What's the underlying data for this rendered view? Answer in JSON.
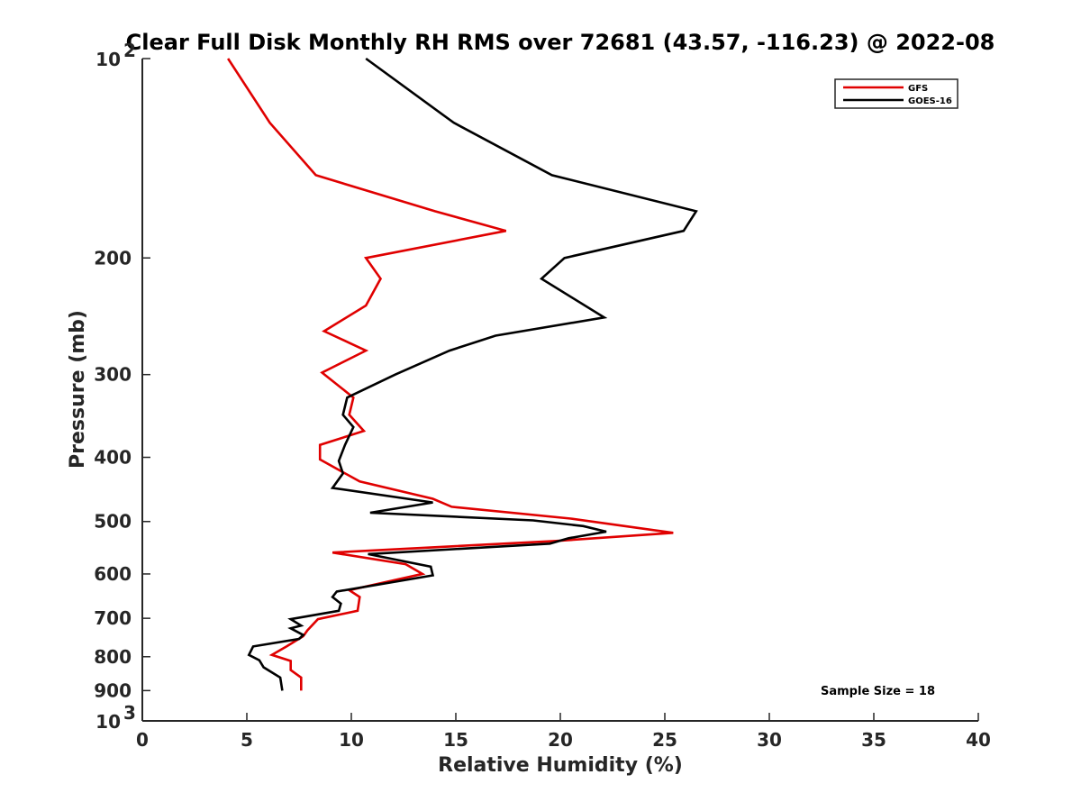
{
  "chart_data": {
    "type": "line",
    "title": "Clear Full Disk Monthly RH RMS over 72681 (43.57, -116.23) @ 2022-08",
    "xlabel": "Relative Humidity (%)",
    "ylabel": "Pressure (mb)",
    "xlim": [
      0,
      40
    ],
    "ylim": [
      100,
      1000
    ],
    "yscale": "log",
    "y_reversed": true,
    "x_ticks": [
      "0",
      "5",
      "10",
      "15",
      "20",
      "25",
      "30",
      "35",
      "40"
    ],
    "y_ticks": [
      {
        "value": 100,
        "base": "10",
        "exp": "2"
      },
      {
        "value": 200,
        "label": "200"
      },
      {
        "value": 300,
        "label": "300"
      },
      {
        "value": 400,
        "label": "400"
      },
      {
        "value": 500,
        "label": "500"
      },
      {
        "value": 600,
        "label": "600"
      },
      {
        "value": 700,
        "label": "700"
      },
      {
        "value": 800,
        "label": "800"
      },
      {
        "value": 900,
        "label": "900"
      },
      {
        "value": 1000,
        "base": "10",
        "exp": "3"
      }
    ],
    "legend_position": "top-right",
    "annotation": "Sample Size = 18",
    "series": [
      {
        "name": "GFS",
        "color": "#e00000",
        "points": [
          [
            4.1,
            100
          ],
          [
            6.1,
            125
          ],
          [
            8.3,
            150
          ],
          [
            14.0,
            170
          ],
          [
            17.4,
            182
          ],
          [
            10.7,
            200
          ],
          [
            11.4,
            215
          ],
          [
            10.7,
            236
          ],
          [
            8.7,
            258
          ],
          [
            10.7,
            276
          ],
          [
            8.6,
            298
          ],
          [
            10.1,
            325
          ],
          [
            9.9,
            345
          ],
          [
            10.6,
            365
          ],
          [
            8.5,
            383
          ],
          [
            8.5,
            403
          ],
          [
            10.4,
            435
          ],
          [
            13.9,
            462
          ],
          [
            14.8,
            475
          ],
          [
            20.5,
            495
          ],
          [
            25.4,
            520
          ],
          [
            19.8,
            535
          ],
          [
            9.1,
            557
          ],
          [
            12.6,
            580
          ],
          [
            13.4,
            600
          ],
          [
            9.9,
            635
          ],
          [
            10.4,
            650
          ],
          [
            10.3,
            682
          ],
          [
            8.4,
            702
          ],
          [
            7.9,
            730
          ],
          [
            7.7,
            745
          ],
          [
            6.9,
            772
          ],
          [
            6.2,
            795
          ],
          [
            7.1,
            812
          ],
          [
            7.1,
            838
          ],
          [
            7.6,
            860
          ],
          [
            7.6,
            900
          ]
        ]
      },
      {
        "name": "GOES-16",
        "color": "#000000",
        "points": [
          [
            10.7,
            100
          ],
          [
            14.9,
            125
          ],
          [
            19.6,
            150
          ],
          [
            26.5,
            170
          ],
          [
            25.9,
            182
          ],
          [
            20.2,
            200
          ],
          [
            19.1,
            215
          ],
          [
            22.1,
            246
          ],
          [
            16.9,
            262
          ],
          [
            14.7,
            276
          ],
          [
            12.1,
            300
          ],
          [
            9.8,
            325
          ],
          [
            9.6,
            345
          ],
          [
            10.1,
            360
          ],
          [
            9.7,
            383
          ],
          [
            9.4,
            405
          ],
          [
            9.6,
            423
          ],
          [
            9.1,
            445
          ],
          [
            13.9,
            468
          ],
          [
            10.9,
            485
          ],
          [
            18.7,
            498
          ],
          [
            21.1,
            508
          ],
          [
            22.2,
            518
          ],
          [
            20.4,
            530
          ],
          [
            19.5,
            540
          ],
          [
            10.8,
            560
          ],
          [
            13.8,
            585
          ],
          [
            13.9,
            603
          ],
          [
            9.3,
            638
          ],
          [
            9.1,
            650
          ],
          [
            9.5,
            665
          ],
          [
            9.4,
            682
          ],
          [
            7.1,
            702
          ],
          [
            7.6,
            718
          ],
          [
            7.1,
            725
          ],
          [
            7.7,
            742
          ],
          [
            7.5,
            752
          ],
          [
            5.3,
            772
          ],
          [
            5.1,
            795
          ],
          [
            5.6,
            810
          ],
          [
            5.8,
            830
          ],
          [
            6.6,
            860
          ],
          [
            6.7,
            900
          ]
        ]
      }
    ]
  }
}
